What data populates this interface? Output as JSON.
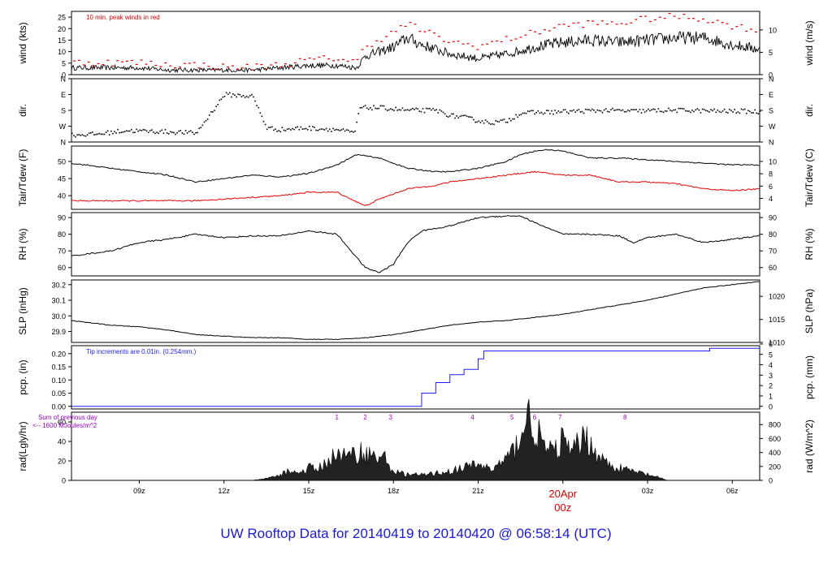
{
  "footer_title": "UW Rooftop Data for 20140419  to  20140420 @ 06:58:14  (UTC)",
  "colors": {
    "black": "#000000",
    "red": "#e00000",
    "blue": "#2020ff",
    "purple": "#a000c8",
    "title_blue": "#1a1ad6"
  },
  "x_axis": {
    "ticks": [
      "09z",
      "12z",
      "15z",
      "18z",
      "21z",
      "03z",
      "06z"
    ],
    "date_label": "20Apr",
    "date_tick": "00z",
    "start_hour_utc": 6.6,
    "end_hour_utc": 30.97
  },
  "chart_data": [
    {
      "type": "line",
      "title": "",
      "annotation": "10 min. peak winds in red",
      "ylabel_left": "wind (kts)",
      "ylabel_right": "wind (m/s)",
      "ylim": [
        0,
        27.5
      ],
      "yticks_left": [
        "0",
        "5",
        "10",
        "15",
        "20",
        "25"
      ],
      "yticks_right": [
        "0",
        "5",
        "10"
      ],
      "series": [
        {
          "name": "",
          "color": "black",
          "x_hours": [
            6.6,
            8,
            9,
            10,
            11,
            12,
            13,
            14,
            15,
            16,
            16.7,
            17,
            18,
            18.5,
            19,
            20,
            21,
            22,
            23,
            24,
            25,
            26,
            27,
            28,
            29,
            30,
            30.97
          ],
          "values": [
            3,
            3,
            3,
            2,
            2,
            2,
            2,
            3,
            4,
            4,
            3,
            8,
            12,
            16,
            13,
            9,
            7,
            9,
            12,
            14,
            15,
            14,
            15,
            16,
            16,
            13,
            11
          ]
        },
        {
          "name": "",
          "color": "red",
          "style": "dashes",
          "x_hours": [
            6.6,
            8,
            9,
            10,
            11,
            12,
            13,
            14,
            15,
            16,
            16.7,
            17,
            18,
            18.5,
            19,
            20,
            21,
            22,
            23,
            24,
            25,
            26,
            27,
            28,
            29,
            30,
            30.97
          ],
          "values": [
            5,
            5,
            5,
            4,
            4,
            3,
            3,
            4,
            6,
            7,
            5,
            12,
            18,
            22,
            19,
            14,
            12,
            15,
            18,
            21,
            22,
            22,
            24,
            25,
            24,
            21,
            19
          ]
        }
      ]
    },
    {
      "type": "scatter",
      "title": "",
      "ylabel_left": "dir.",
      "ylabel_right": "dir.",
      "yticks_left": [
        "N",
        "W",
        "S",
        "E",
        "N"
      ],
      "yticks_right": [
        "N",
        "W",
        "S",
        "E",
        "N"
      ],
      "ylim_deg": [
        0,
        360
      ],
      "series": [
        {
          "name": "",
          "color": "black",
          "x_hours": [
            6.6,
            7.5,
            8.5,
            9.5,
            10.5,
            11,
            12,
            13,
            13.5,
            14,
            14.8,
            15.5,
            16,
            16.6,
            16.8,
            17.5,
            18.5,
            19.5,
            20,
            20.5,
            21,
            21.5,
            22,
            22.5,
            23.5,
            24.5,
            25.5,
            26.5,
            27.5,
            28.5,
            29.5,
            30.5,
            30.97
          ],
          "values": [
            40,
            45,
            65,
            60,
            55,
            50,
            270,
            260,
            80,
            70,
            80,
            75,
            70,
            50,
            195,
            195,
            180,
            180,
            150,
            140,
            120,
            110,
            120,
            165,
            170,
            175,
            180,
            175,
            180,
            180,
            175,
            175,
            170
          ]
        }
      ]
    },
    {
      "type": "line",
      "title": "",
      "ylabel_left": "Tair/Tdew (F)",
      "ylabel_right": "Tair/Tdew (C)",
      "ylim": [
        36,
        54.5
      ],
      "yticks_left": [
        "40",
        "45",
        "50"
      ],
      "yticks_right": [
        "4",
        "6",
        "8",
        "10"
      ],
      "series": [
        {
          "name": "",
          "color": "black",
          "x_hours": [
            6.6,
            8,
            9,
            10,
            11,
            12,
            13,
            14,
            15,
            16,
            16.7,
            17.5,
            18.5,
            19.5,
            20,
            21,
            22,
            22.5,
            23,
            23.5,
            24,
            25,
            26,
            27,
            28,
            29,
            30,
            30.97
          ],
          "values": [
            49.5,
            48,
            47,
            46,
            44,
            45,
            46,
            45.5,
            46.5,
            49,
            52,
            51,
            48,
            47,
            47,
            48,
            50,
            52,
            53,
            53.5,
            53,
            51,
            51,
            50.5,
            50,
            49.5,
            49,
            49
          ]
        },
        {
          "name": "",
          "color": "red",
          "x_hours": [
            6.6,
            8,
            9,
            10,
            11,
            12,
            13,
            14,
            15,
            16,
            16.5,
            17,
            17.5,
            18.5,
            19.5,
            20,
            21,
            22,
            23,
            24,
            25,
            26,
            27,
            28,
            29,
            30,
            30.97
          ],
          "values": [
            38.5,
            38.5,
            38.5,
            38.5,
            38.5,
            39,
            39.5,
            40,
            41,
            41,
            39,
            37,
            39,
            42,
            43,
            44,
            45,
            46,
            47,
            46,
            46,
            44,
            44,
            43.5,
            42,
            41.5,
            42
          ]
        }
      ]
    },
    {
      "type": "line",
      "title": "",
      "ylabel_left": "RH (%)",
      "ylabel_right": "RH (%)",
      "ylim": [
        55,
        93
      ],
      "yticks_left": [
        "60",
        "70",
        "80",
        "90"
      ],
      "yticks_right": [
        "60",
        "70",
        "80",
        "90"
      ],
      "series": [
        {
          "name": "",
          "color": "black",
          "x_hours": [
            6.6,
            8,
            9,
            10,
            11,
            12,
            13,
            14,
            15,
            16,
            16.5,
            17,
            17.5,
            18,
            18.5,
            19,
            20,
            21,
            22,
            22.5,
            23,
            24,
            25,
            26,
            26.5,
            27,
            27.5,
            28,
            29,
            30,
            30.97
          ],
          "values": [
            67,
            70,
            75,
            77,
            80,
            78,
            79,
            79,
            82,
            80,
            70,
            60,
            57,
            62,
            75,
            82,
            85,
            90,
            91,
            91,
            87,
            80,
            80,
            79,
            75,
            78,
            79,
            80,
            75,
            77,
            79
          ]
        }
      ]
    },
    {
      "type": "line",
      "title": "",
      "ylabel_left": "SLP (inHg)",
      "ylabel_right": "SLP (hPa)",
      "ylim": [
        29.83,
        30.23
      ],
      "yticks_left": [
        "29.9",
        "30.0",
        "30.1",
        "30.2"
      ],
      "yticks_right": [
        "1010",
        "1015",
        "1020"
      ],
      "series": [
        {
          "name": "",
          "color": "black",
          "x_hours": [
            6.6,
            8,
            9,
            10,
            11,
            12,
            13,
            14,
            15,
            16,
            17,
            18,
            19,
            20,
            21,
            22,
            23,
            24,
            25,
            26,
            27,
            28,
            29,
            30,
            30.97
          ],
          "values": [
            29.97,
            29.94,
            29.93,
            29.91,
            29.88,
            29.87,
            29.86,
            29.86,
            29.85,
            29.85,
            29.86,
            29.88,
            29.91,
            29.94,
            29.96,
            29.97,
            29.99,
            30.01,
            30.04,
            30.07,
            30.1,
            30.14,
            30.18,
            30.2,
            30.22
          ]
        }
      ]
    },
    {
      "type": "line",
      "title": "",
      "annotation": "Tip increments are 0.01in. (0.254mm.)",
      "ylabel_left": "pcp. (in)",
      "ylabel_right": "pcp. (mm)",
      "ylim": [
        -0.01,
        0.23
      ],
      "yticks_left": [
        "0.00",
        "0.05",
        "0.10",
        "0.15",
        "0.20"
      ],
      "yticks_right": [
        "0",
        "1",
        "2",
        "3",
        "4",
        "5",
        "6"
      ],
      "series": [
        {
          "name": "",
          "color": "blue",
          "style": "step",
          "x_hours": [
            6.6,
            18.5,
            19,
            19.5,
            20,
            20.5,
            21,
            21.2,
            22,
            23,
            24,
            25,
            26,
            27,
            28,
            29.2,
            30,
            30.97
          ],
          "values": [
            0,
            0,
            0.05,
            0.09,
            0.12,
            0.14,
            0.18,
            0.21,
            0.21,
            0.21,
            0.21,
            0.21,
            0.21,
            0.21,
            0.21,
            0.22,
            0.22,
            0.22
          ]
        }
      ]
    },
    {
      "type": "area",
      "title": "",
      "ylabel_left": "rad(Lgly/hr)",
      "ylabel_right": "rad (W/m^2)",
      "legend_lines": [
        "Sum of previous day",
        "<-- 1600 MJoules/m^2"
      ],
      "ylim": [
        0,
        70
      ],
      "yticks_left": [
        "0",
        "20",
        "40",
        "60"
      ],
      "yticks_right": [
        "0",
        "200",
        "400",
        "600",
        "800"
      ],
      "top_labels": [
        {
          "text": "1",
          "x_hour": 16.0
        },
        {
          "text": "2",
          "x_hour": 17.0
        },
        {
          "text": "3",
          "x_hour": 17.9
        },
        {
          "text": "4",
          "x_hour": 20.8
        },
        {
          "text": "5",
          "x_hour": 22.2
        },
        {
          "text": "6",
          "x_hour": 23.0
        },
        {
          "text": "7",
          "x_hour": 23.9
        },
        {
          "text": "8",
          "x_hour": 26.2
        }
      ],
      "series": [
        {
          "name": "",
          "color": "black",
          "x_hours": [
            6.6,
            13,
            13.5,
            14,
            14.3,
            14.7,
            15,
            15.3,
            15.7,
            16,
            16.4,
            16.8,
            17.2,
            17.7,
            18,
            18.4,
            19,
            19.5,
            20,
            20.5,
            21,
            21.5,
            22,
            22.3,
            22.5,
            22.8,
            23,
            23.3,
            23.6,
            24,
            24.3,
            24.8,
            25.3,
            25.8,
            26.5,
            27.2,
            27.7,
            30.97
          ],
          "values": [
            0,
            0,
            2,
            6,
            11,
            8,
            14,
            12,
            22,
            30,
            25,
            32,
            28,
            24,
            10,
            7,
            6,
            8,
            10,
            14,
            18,
            12,
            24,
            34,
            55,
            70,
            58,
            40,
            30,
            45,
            30,
            50,
            25,
            15,
            10,
            5,
            0,
            0
          ]
        }
      ]
    }
  ]
}
